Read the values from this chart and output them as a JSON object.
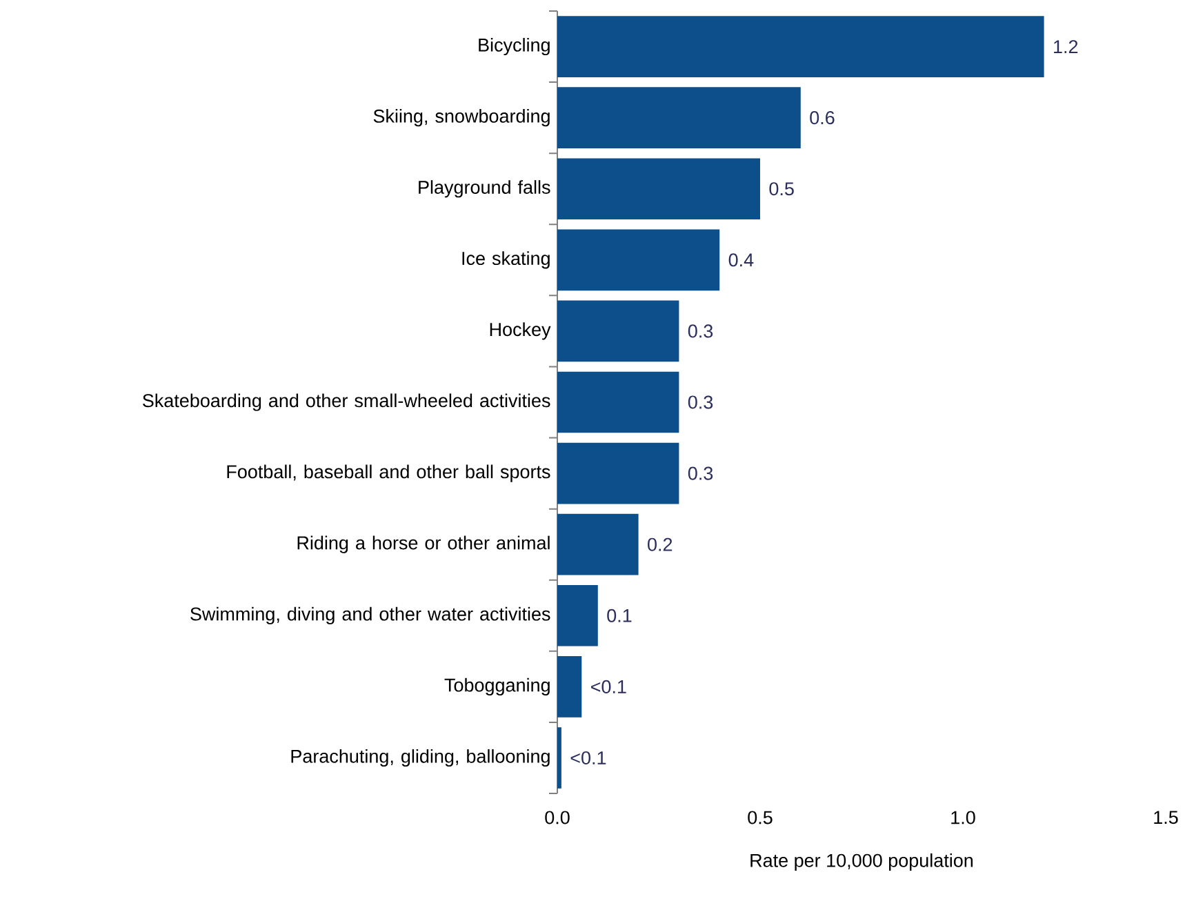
{
  "chart_data": {
    "type": "bar",
    "orientation": "horizontal",
    "categories": [
      "Bicycling",
      "Skiing, snowboarding",
      "Playground falls",
      "Ice skating",
      "Hockey",
      "Skateboarding and other small-wheeled activities",
      "Football, baseball and other ball sports",
      "Riding a horse or other animal",
      "Swimming, diving and other water activities",
      "Tobogganing",
      "Parachuting, gliding, ballooning"
    ],
    "values": [
      1.2,
      0.6,
      0.5,
      0.4,
      0.3,
      0.3,
      0.3,
      0.2,
      0.1,
      0.06,
      0.01
    ],
    "value_labels": [
      "1.2",
      "0.6",
      "0.5",
      "0.4",
      "0.3",
      "0.3",
      "0.3",
      "0.2",
      "0.1",
      "<0.1",
      "<0.1"
    ],
    "color": "#0d4f8b",
    "xlim": [
      0,
      1.5
    ],
    "xticks": [
      {
        "value": 0,
        "label": "0.0"
      },
      {
        "value": 0.5,
        "label": "0.5"
      },
      {
        "value": 1.0,
        "label": "1.0"
      },
      {
        "value": 1.5,
        "label": "1.5"
      }
    ],
    "xlabel": "Rate per 10,000 population"
  }
}
